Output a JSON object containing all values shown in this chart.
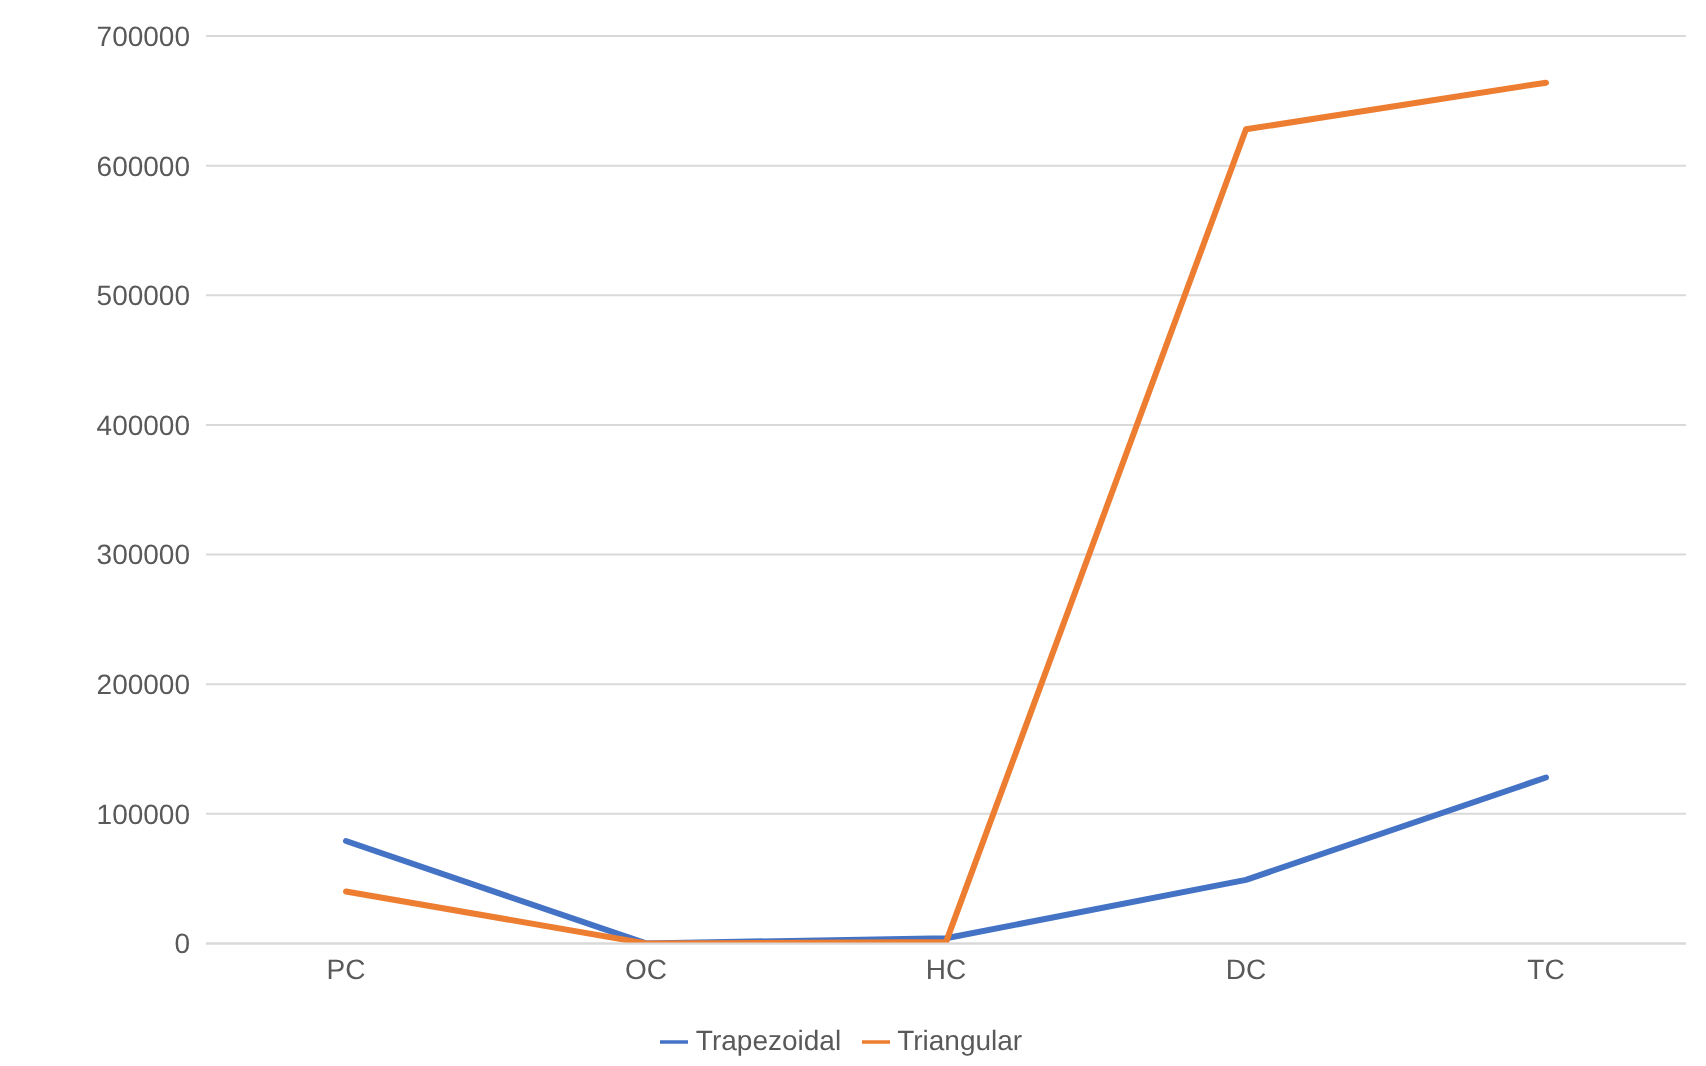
{
  "chart_data": {
    "type": "line",
    "categories": [
      "PC",
      "OC",
      "HC",
      "DC",
      "TC"
    ],
    "series": [
      {
        "name": "Trapezoidal",
        "color": "#4472c4",
        "values": [
          79000,
          0,
          4000,
          49000,
          128000
        ]
      },
      {
        "name": "Triangular",
        "color": "#ed7d31",
        "values": [
          40000,
          0,
          1000,
          628000,
          664000
        ]
      }
    ],
    "ylim": [
      0,
      700000
    ],
    "yticks": [
      0,
      100000,
      200000,
      300000,
      400000,
      500000,
      600000,
      700000
    ],
    "grid": "y",
    "legend": "bottom",
    "marker": "none",
    "line_style": "solid"
  }
}
